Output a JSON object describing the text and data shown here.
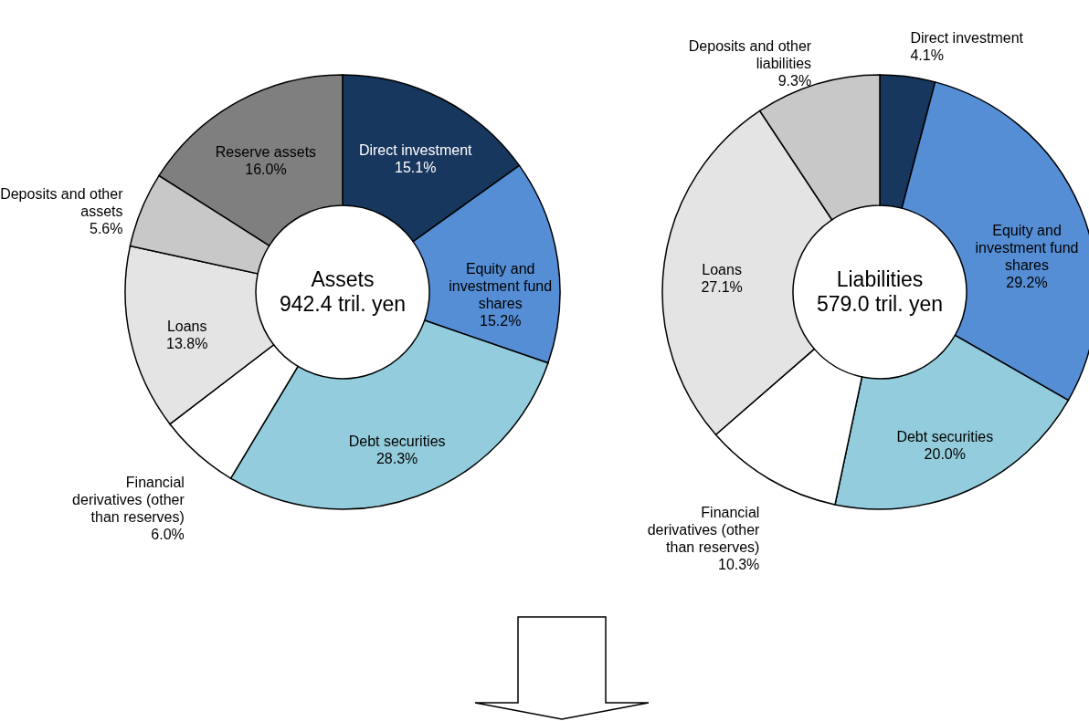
{
  "chart_data": [
    {
      "type": "donut",
      "title": "Assets",
      "subtitle": "942.4 tril. yen",
      "categories": [
        "Direct investment",
        "Equity and investment fund shares",
        "Debt securities",
        "Financial derivatives (other than reserves)",
        "Loans",
        "Deposits and other assets",
        "Reserve assets"
      ],
      "values": [
        15.1,
        15.2,
        28.3,
        6.0,
        13.8,
        5.6,
        16.0
      ],
      "value_labels": [
        "15.1%",
        "15.2%",
        "28.3%",
        "6.0%",
        "13.8%",
        "5.6%",
        "16.0%"
      ],
      "colors": [
        "#17375e",
        "#558ed5",
        "#93cddd",
        "#ffffff",
        "#e4e4e4",
        "#c8c8c8",
        "#7f7f7f"
      ],
      "legend": false
    },
    {
      "type": "donut",
      "title": "Liabilities",
      "subtitle": "579.0 tril. yen",
      "categories": [
        "Direct investment",
        "Equity and investment fund shares",
        "Debt securities",
        "Financial derivatives (other than reserves)",
        "Loans",
        "Deposits and other liabilities"
      ],
      "values": [
        4.1,
        29.2,
        20.0,
        10.3,
        27.1,
        9.3
      ],
      "value_labels": [
        "4.1%",
        "29.2%",
        "20.0%",
        "10.3%",
        "27.1%",
        "9.3%"
      ],
      "colors": [
        "#17375e",
        "#558ed5",
        "#93cddd",
        "#ffffff",
        "#e4e4e4",
        "#c8c8c8"
      ],
      "legend": false
    }
  ]
}
